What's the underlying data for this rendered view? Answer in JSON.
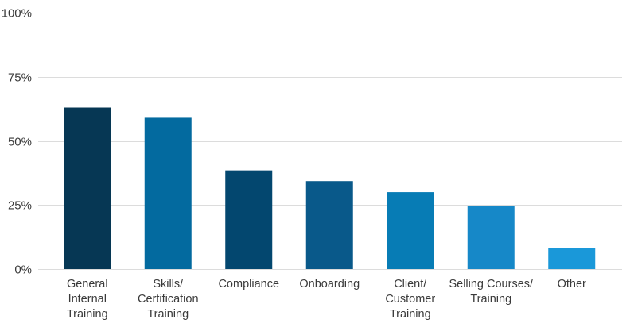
{
  "chart_data": {
    "type": "bar",
    "categories": [
      [
        "General",
        "Internal",
        "Training"
      ],
      [
        "Skills/",
        "Certification",
        "Training"
      ],
      [
        "Compliance"
      ],
      [
        "Onboarding"
      ],
      [
        "Client/",
        "Customer",
        "Training"
      ],
      [
        "Selling Courses/",
        "Training"
      ],
      [
        "Other"
      ]
    ],
    "values": [
      63,
      59,
      38.5,
      34.3,
      30,
      24.5,
      8.3
    ],
    "colors": [
      "#063754",
      "#036a9f",
      "#03476f",
      "#09598a",
      "#077cb5",
      "#1688c8",
      "#1a98d9"
    ],
    "yticks": [
      "0%",
      "25%",
      "50%",
      "75%",
      "100%"
    ],
    "ylim": [
      0,
      100
    ],
    "grid": true
  }
}
